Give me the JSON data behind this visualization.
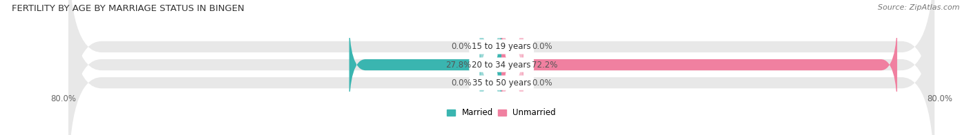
{
  "title": "FERTILITY BY AGE BY MARRIAGE STATUS IN BINGEN",
  "source": "Source: ZipAtlas.com",
  "categories": [
    "15 to 19 years",
    "20 to 34 years",
    "35 to 50 years"
  ],
  "married_values": [
    0.0,
    27.8,
    0.0
  ],
  "unmarried_values": [
    0.0,
    72.2,
    0.0
  ],
  "xlim": [
    -80,
    80
  ],
  "married_color": "#3ab5b0",
  "unmarried_color": "#f080a0",
  "bar_bg_color": "#e8e8e8",
  "bar_height": 0.62,
  "label_bg_color": "#ffffff",
  "title_fontsize": 9.5,
  "label_fontsize": 8.5,
  "source_fontsize": 8,
  "tick_fontsize": 8.5,
  "category_fontsize": 8.5,
  "figure_bg": "#ffffff"
}
